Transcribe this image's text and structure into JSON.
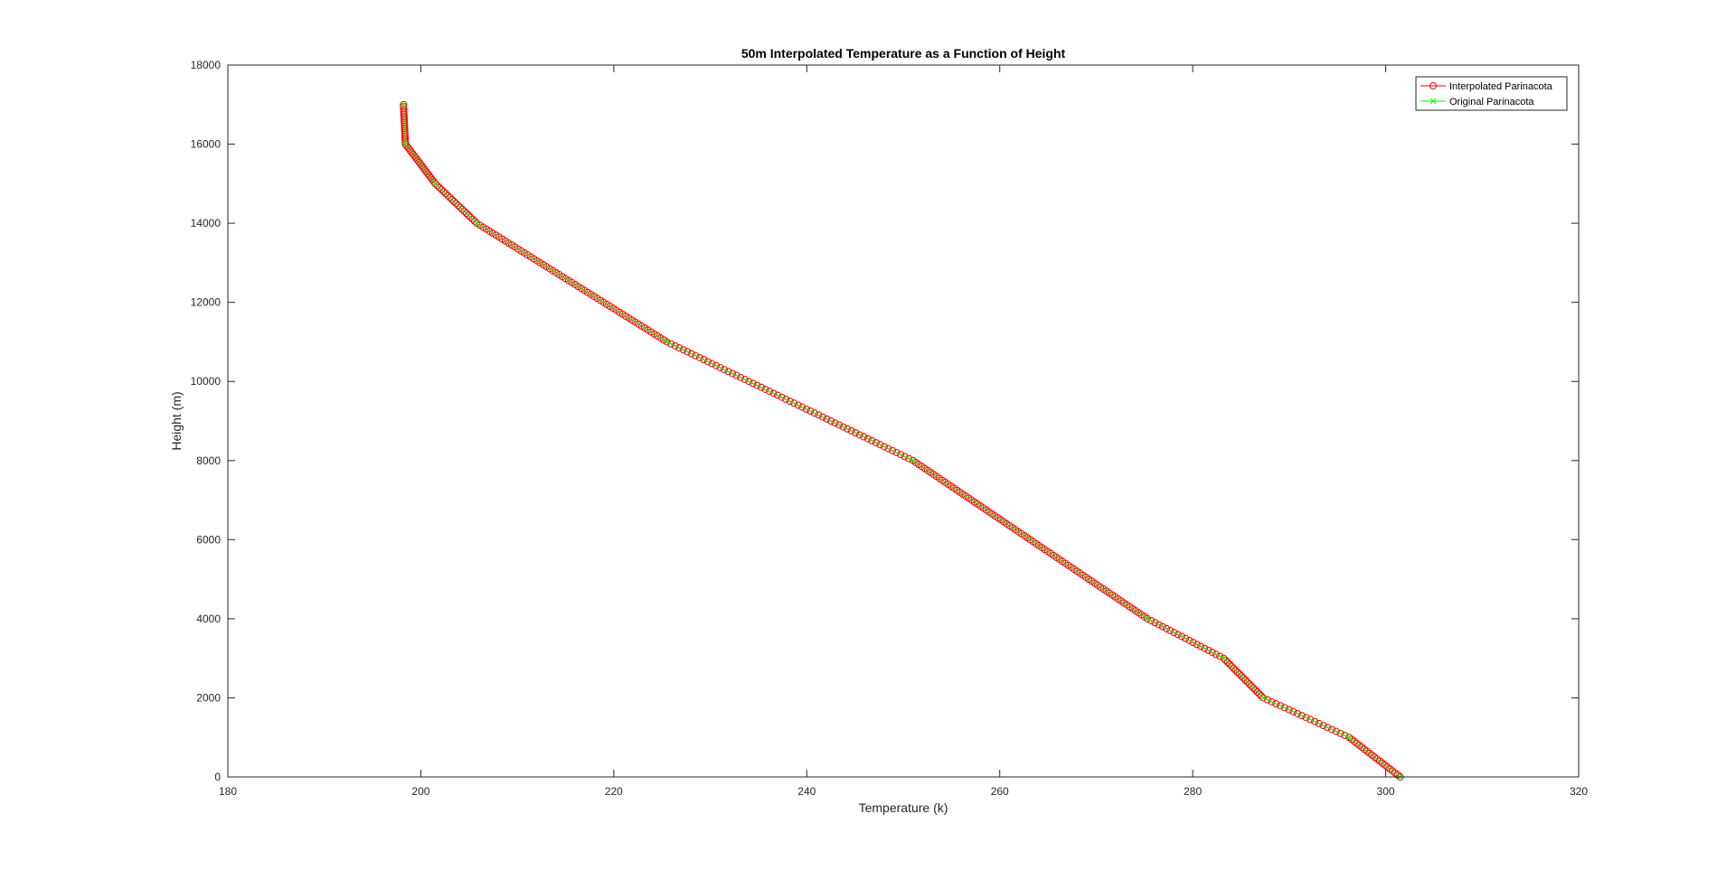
{
  "chart_data": {
    "type": "line",
    "title": "50m Interpolated Temperature as a Function of Height",
    "xlabel": "Temperature (k)",
    "ylabel": "Height (m)",
    "xlim": [
      180,
      320
    ],
    "ylim": [
      0,
      18000
    ],
    "xticks": [
      180,
      200,
      220,
      240,
      260,
      280,
      300,
      320
    ],
    "yticks": [
      0,
      2000,
      4000,
      6000,
      8000,
      10000,
      12000,
      14000,
      16000,
      18000
    ],
    "grid": false,
    "legend_position": "top-right",
    "series": [
      {
        "name": "Interpolated Parinacota",
        "color": "#ff0000",
        "marker": "circle",
        "interpolate_step": 50,
        "x": [
          301.5,
          296.2,
          287.3,
          283.2,
          275.3,
          251.0,
          225.5,
          205.8,
          201.5,
          198.4,
          198.2
        ],
        "y": [
          0,
          1000,
          2000,
          3000,
          4000,
          8000,
          11000,
          14000,
          15000,
          16000,
          17000
        ]
      },
      {
        "name": "Original Parinacota",
        "color": "#00ff00",
        "marker": "x",
        "x": [
          301.5,
          296.2,
          287.3,
          283.2,
          275.3,
          251.0,
          225.5,
          205.8,
          201.5,
          198.4,
          198.2
        ],
        "y": [
          0,
          1000,
          2000,
          3000,
          4000,
          8000,
          11000,
          14000,
          15000,
          16000,
          17000
        ]
      }
    ]
  }
}
